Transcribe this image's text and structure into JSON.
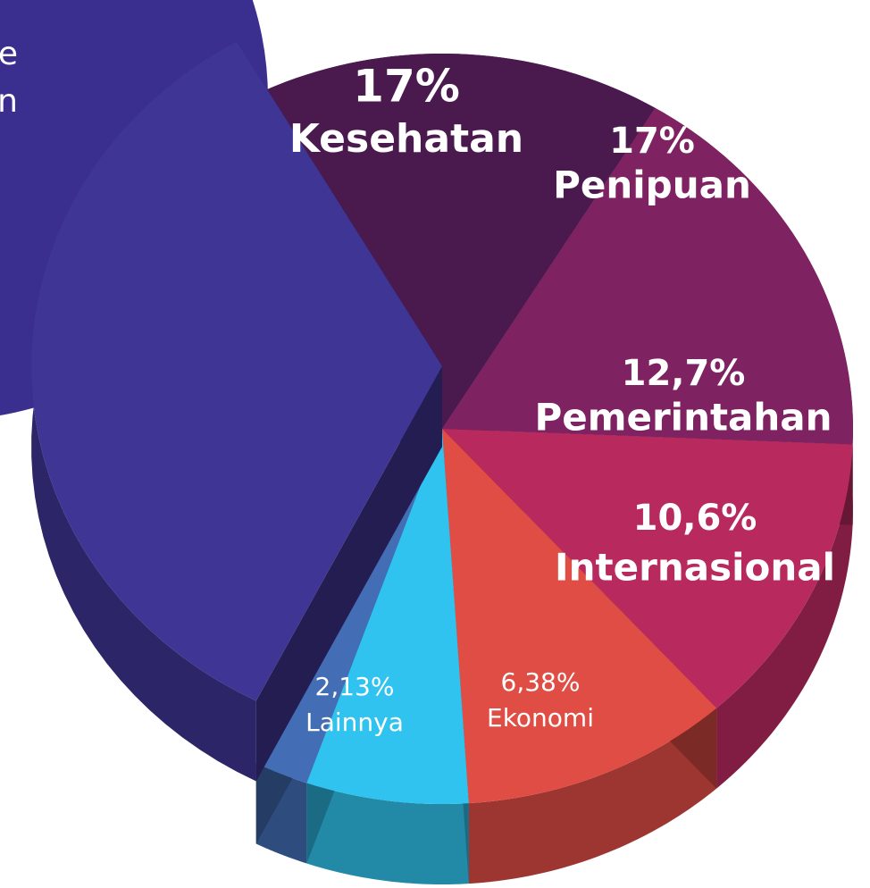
{
  "chart_data": {
    "type": "pie3d",
    "categories": [
      "Kesehatan",
      "Penipuan",
      "Pemerintahan",
      "Internasional",
      "Ekonomi",
      "Lainnya",
      null
    ],
    "values": [
      17,
      17,
      12.7,
      10.6,
      6.38,
      2.13,
      34.19
    ],
    "value_labels": [
      "17%",
      "17%",
      "12,7%",
      "10,6%",
      "6,38%",
      "2,13%",
      null
    ],
    "colors": [
      "#4a1a4f",
      "#7f2262",
      "#b82a5e",
      "#e04d44",
      "#30c3ef",
      "#436db5",
      "#3f3594"
    ],
    "annotations": [
      "e",
      "n"
    ]
  }
}
